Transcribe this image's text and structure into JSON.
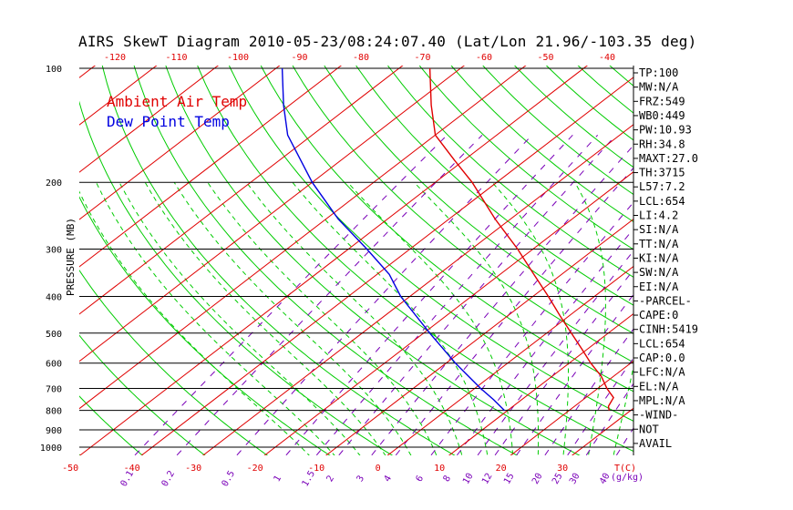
{
  "title": "AIRS SkewT Diagram 2010-05-23/08:24:07.40 (Lat/Lon 21.96/-103.35 deg)",
  "chart_data": {
    "type": "line",
    "title": "AIRS SkewT Diagram 2010-05-23/08:24:07.40 (Lat/Lon 21.96/-103.35 deg)",
    "ylabel": "PRESSURE (MB)",
    "xlabel": "T(C)",
    "mixing_ratio_unit": "(g/kg)",
    "y_scale": "log-pressure",
    "ylim": [
      1000,
      100
    ],
    "pressure_ticks": [
      100,
      200,
      300,
      400,
      500,
      600,
      700,
      800,
      900,
      1000
    ],
    "bottom_temp_ticks": [
      -50,
      -40,
      -30,
      -20,
      -10,
      0,
      10,
      20,
      30
    ],
    "top_temp_ticks": [
      -120,
      -110,
      -100,
      -90,
      -80,
      -70,
      -60,
      -50,
      -40
    ],
    "mixing_ratio_ticks": [
      "0.1",
      "0.2",
      "0.5",
      "1",
      "1.5",
      "2",
      "3",
      "4",
      "6",
      "8",
      "10",
      "12",
      "15",
      "20",
      "25",
      "30",
      "40"
    ],
    "legend": [
      "Ambient Air Temp",
      "Dew Point Temp"
    ],
    "colors": {
      "air": "#e00000",
      "dew": "#0000e0",
      "isotherm": "#e00000",
      "dry_adiabat": "#00cc00",
      "moist_adiabat": "#00cc00",
      "mixing_ratio": "#7a00b8",
      "isobar": "#000000",
      "tick_red": "#e00000"
    },
    "series": [
      {
        "name": "Ambient Air Temp",
        "points": [
          {
            "p": 800,
            "t": 26.5
          },
          {
            "p": 780,
            "t": 25.5
          },
          {
            "p": 740,
            "t": 24.5
          },
          {
            "p": 700,
            "t": 21.5
          },
          {
            "p": 650,
            "t": 18.0
          },
          {
            "p": 600,
            "t": 13.5
          },
          {
            "p": 550,
            "t": 9.0
          },
          {
            "p": 500,
            "t": 4.0
          },
          {
            "p": 450,
            "t": -1.5
          },
          {
            "p": 400,
            "t": -7.5
          },
          {
            "p": 350,
            "t": -14.5
          },
          {
            "p": 300,
            "t": -22.5
          },
          {
            "p": 250,
            "t": -32.5
          },
          {
            "p": 200,
            "t": -44.0
          },
          {
            "p": 175,
            "t": -51.5
          },
          {
            "p": 150,
            "t": -60.0
          },
          {
            "p": 125,
            "t": -67.0
          },
          {
            "p": 100,
            "t": -75.0
          }
        ]
      },
      {
        "name": "Dew Point Temp",
        "points": [
          {
            "p": 800,
            "t": 9.5
          },
          {
            "p": 750,
            "t": 5.5
          },
          {
            "p": 700,
            "t": 1.0
          },
          {
            "p": 600,
            "t": -8.5
          },
          {
            "p": 500,
            "t": -19.0
          },
          {
            "p": 400,
            "t": -31.5
          },
          {
            "p": 350,
            "t": -38.0
          },
          {
            "p": 300,
            "t": -47.0
          },
          {
            "p": 250,
            "t": -58.0
          },
          {
            "p": 200,
            "t": -70.0
          },
          {
            "p": 150,
            "t": -84.0
          },
          {
            "p": 125,
            "t": -91.0
          },
          {
            "p": 100,
            "t": -99.0
          }
        ]
      }
    ]
  },
  "indices": [
    "TP:100",
    "MW:N/A",
    "FRZ:549",
    "WB0:449",
    "PW:10.93",
    "RH:34.8",
    "MAXT:27.0",
    "TH:3715",
    "L57:7.2",
    "LCL:654",
    "LI:4.2",
    "SI:N/A",
    "TT:N/A",
    "KI:N/A",
    "SW:N/A",
    "EI:N/A",
    "-PARCEL-",
    "CAPE:0",
    "CINH:5419",
    "LCL:654",
    "CAP:0.0",
    "LFC:N/A",
    "EL:N/A",
    "MPL:N/A",
    "-WIND-",
    "NOT",
    "AVAIL"
  ]
}
